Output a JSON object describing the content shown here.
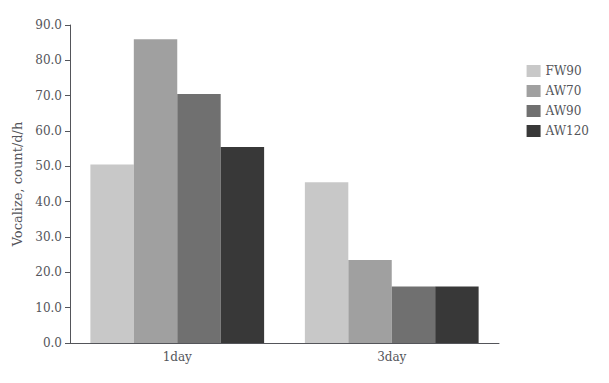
{
  "chart_data": {
    "type": "bar",
    "categories": [
      "1day",
      "3day"
    ],
    "series": [
      {
        "name": "FW90",
        "values": [
          50.5,
          45.5
        ],
        "color": "#c8c8c8"
      },
      {
        "name": "AW70",
        "values": [
          86.0,
          23.5
        ],
        "color": "#a0a0a0"
      },
      {
        "name": "AW90",
        "values": [
          70.5,
          16.0
        ],
        "color": "#707070"
      },
      {
        "name": "AW120",
        "values": [
          55.5,
          16.0
        ],
        "color": "#383838"
      }
    ],
    "ylabel": "Vocalize, count/d/h",
    "ylim": [
      0,
      90.0
    ],
    "yticks": [
      {
        "value": 0,
        "label": "0.0"
      },
      {
        "value": 10,
        "label": "10.0"
      },
      {
        "value": 20,
        "label": "20.0"
      },
      {
        "value": 30,
        "label": "30.0"
      },
      {
        "value": 40,
        "label": "40.0"
      },
      {
        "value": 50,
        "label": "50.0"
      },
      {
        "value": 60,
        "label": "60.0"
      },
      {
        "value": 70,
        "label": "70.0"
      },
      {
        "value": 80,
        "label": "80.0"
      },
      {
        "value": 90,
        "label": "90.0"
      }
    ],
    "grid": false,
    "legend": "right"
  }
}
